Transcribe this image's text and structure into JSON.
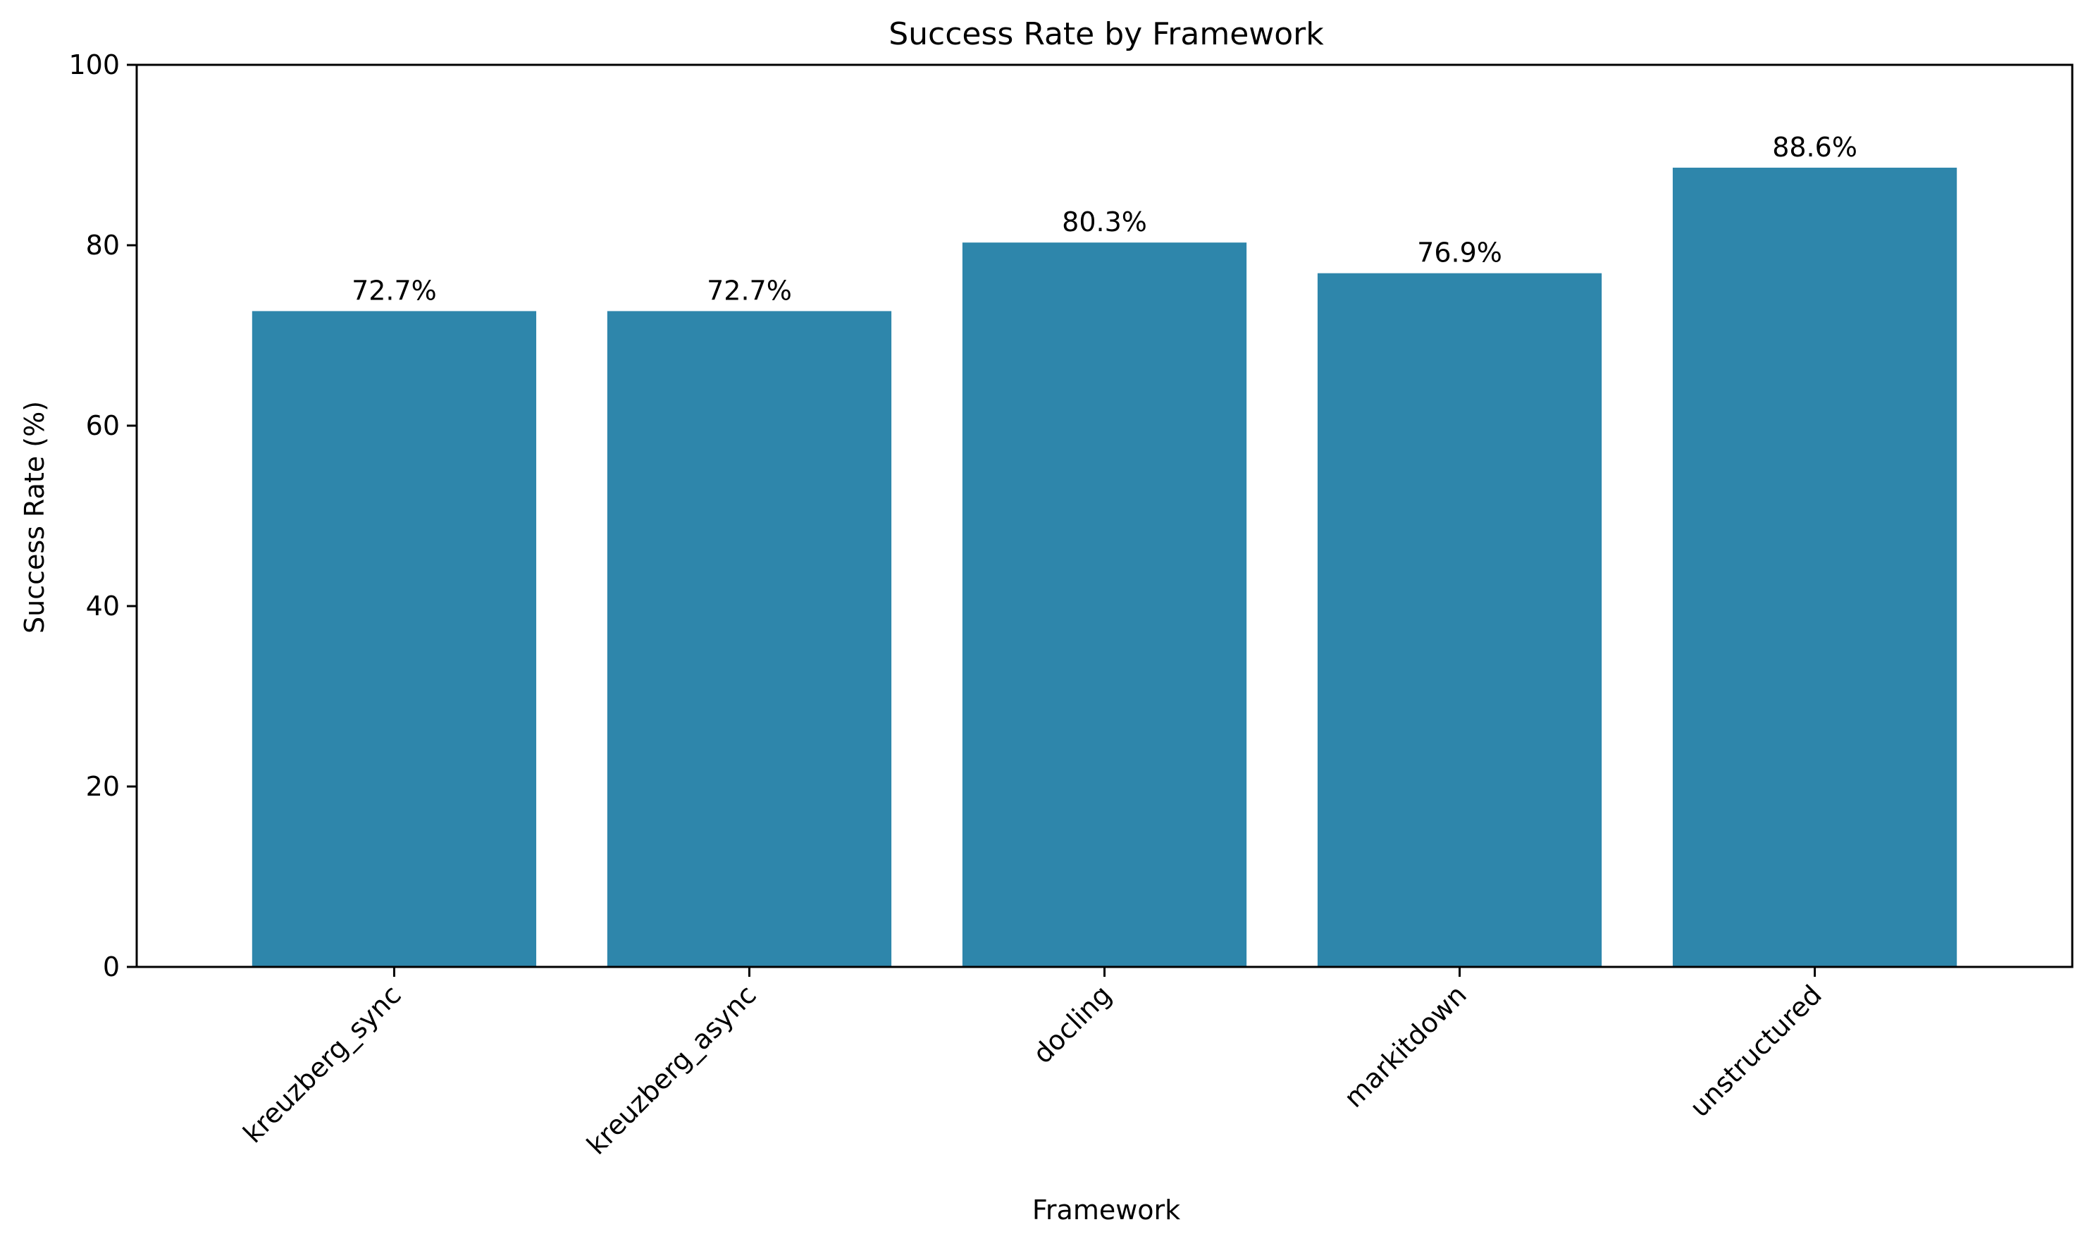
{
  "chart_data": {
    "type": "bar",
    "title": "Success Rate by Framework",
    "xlabel": "Framework",
    "ylabel": "Success Rate (%)",
    "categories": [
      "kreuzberg_sync",
      "kreuzberg_async",
      "docling",
      "markitdown",
      "unstructured"
    ],
    "values": [
      72.7,
      72.7,
      80.3,
      76.9,
      88.6
    ],
    "value_labels": [
      "72.7%",
      "72.7%",
      "80.3%",
      "76.9%",
      "88.6%"
    ],
    "ylim": [
      0,
      100
    ],
    "yticks": [
      0,
      20,
      40,
      60,
      80,
      100
    ],
    "ytick_labels": [
      "0",
      "20",
      "40",
      "60",
      "80",
      "100"
    ],
    "bar_color": "#2e86ab",
    "grid": false,
    "legend": false,
    "xtick_rotation": 45
  }
}
